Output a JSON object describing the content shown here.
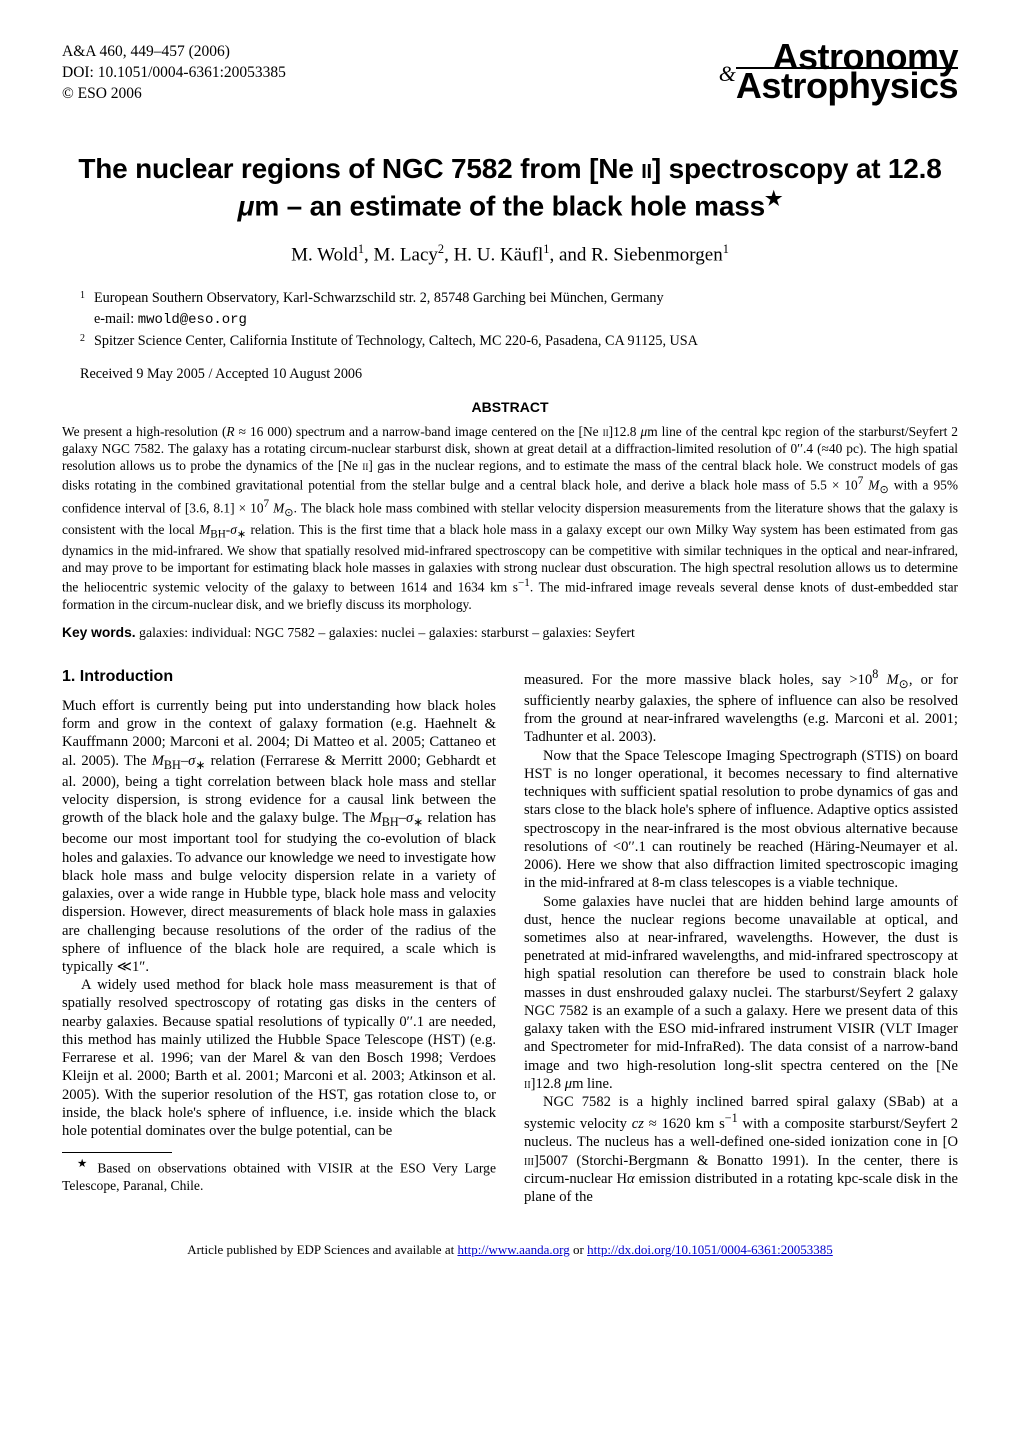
{
  "header": {
    "ref": "A&A 460, 449–457 (2006)",
    "doi": "DOI: 10.1051/0004-6361:20053385",
    "copyright": "© ESO 2006",
    "logo_top": "Astronomy",
    "logo_amp": "&",
    "logo_bot": "Astrophysics"
  },
  "title_html": "The nuclear regions of NGC 7582 from [Ne <span style='font-variant:small-caps'>ii</span>] spectroscopy at 12.8 <i>μ</i>m – an estimate of the black hole mass<sup>&#9733;</sup>",
  "authors_html": "M. Wold<sup>1</sup>, M. Lacy<sup>2</sup>, H. U. Käufl<sup>1</sup>, and R. Siebenmorgen<sup>1</sup>",
  "affiliations": [
    {
      "num": "1",
      "text_html": "European Southern Observatory, Karl-Schwarzschild str. 2, 85748 Garching bei München, Germany<br>e-mail: <span class='email-mono'>mwold@eso.org</span>"
    },
    {
      "num": "2",
      "text_html": "Spitzer Science Center, California Institute of Technology, Caltech, MC 220-6, Pasadena, CA 91125, USA"
    }
  ],
  "dates": "Received 9 May 2005 / Accepted 10 August 2006",
  "abstract_head": "ABSTRACT",
  "abstract_html": "We present a high-resolution (<i>R</i> ≈ 16 000) spectrum and a narrow-band image centered on the [Ne <span style='font-variant:small-caps'>ii</span>]12.8 <i>μ</i>m line of the central kpc region of the starburst/Seyfert 2 galaxy NGC 7582. The galaxy has a rotating circum-nuclear starburst disk, shown at great detail at a diffraction-limited resolution of 0&#8242;&#8242;.4 (≈40 pc). The high spatial resolution allows us to probe the dynamics of the [Ne <span style='font-variant:small-caps'>ii</span>] gas in the nuclear regions, and to estimate the mass of the central black hole. We construct models of gas disks rotating in the combined gravitational potential from the stellar bulge and a central black hole, and derive a black hole mass of 5.5 × 10<sup>7</sup> <i>M</i><sub>⊙</sub> with a 95% confidence interval of [3.6, 8.1] × 10<sup>7</sup> <i>M</i><sub>⊙</sub>. The black hole mass combined with stellar velocity dispersion measurements from the literature shows that the galaxy is consistent with the local <i>M</i><sub>BH</sub>-<i>σ</i><sub>∗</sub> relation. This is the first time that a black hole mass in a galaxy except our own Milky Way system has been estimated from gas dynamics in the mid-infrared. We show that spatially resolved mid-infrared spectroscopy can be competitive with similar techniques in the optical and near-infrared, and may prove to be important for estimating black hole masses in galaxies with strong nuclear dust obscuration. The high spectral resolution allows us to determine the heliocentric systemic velocity of the galaxy to between 1614 and 1634 km s<sup>−1</sup>. The mid-infrared image reveals several dense knots of dust-embedded star formation in the circum-nuclear disk, and we briefly discuss its morphology.",
  "keywords_label": "Key words.",
  "keywords_text": " galaxies: individual: NGC 7582 – galaxies: nuclei – galaxies: starburst – galaxies: Seyfert",
  "section1_head": "1. Introduction",
  "col_left": {
    "p1_html": "Much effort is currently being put into understanding how black holes form and grow in the context of galaxy formation (e.g. Haehnelt & Kauffmann 2000; Marconi et al. 2004; Di Matteo et al. 2005; Cattaneo et al. 2005). The <i>M</i><sub>BH</sub>–<i>σ</i><sub>∗</sub> relation (Ferrarese & Merritt 2000; Gebhardt et al. 2000), being a tight correlation between black hole mass and stellar velocity dispersion, is strong evidence for a causal link between the growth of the black hole and the galaxy bulge. The <i>M</i><sub>BH</sub>–<i>σ</i><sub>∗</sub> relation has become our most important tool for studying the co-evolution of black holes and galaxies. To advance our knowledge we need to investigate how black hole mass and bulge velocity dispersion relate in a variety of galaxies, over a wide range in Hubble type, black hole mass and velocity dispersion. However, direct measurements of black hole mass in galaxies are challenging because resolutions of the order of the radius of the sphere of influence of the black hole are required, a scale which is typically ≪1″.",
    "p2_html": "A widely used method for black hole mass measurement is that of spatially resolved spectroscopy of rotating gas disks in the centers of nearby galaxies. Because spatial resolutions of typically 0&#8242;&#8242;.1 are needed, this method has mainly utilized the Hubble Space Telescope (HST) (e.g. Ferrarese et al. 1996; van der Marel & van den Bosch 1998; Verdoes Kleijn et al. 2000; Barth et al. 2001; Marconi et al. 2003; Atkinson et al. 2005). With the superior resolution of the HST, gas rotation close to, or inside, the black hole's sphere of influence, i.e. inside which the black hole potential dominates over the bulge potential, can be",
    "footnote_html": "<sup>&#9733;</sup> Based on observations obtained with VISIR at the ESO Very Large Telescope, Paranal, Chile."
  },
  "col_right": {
    "p1_html": "measured. For the more massive black holes, say &gt;10<sup>8</sup> <i>M</i><sub>⊙</sub>, or for sufficiently nearby galaxies, the sphere of influence can also be resolved from the ground at near-infrared wavelengths (e.g. Marconi et al. 2001; Tadhunter et al. 2003).",
    "p2_html": "Now that the Space Telescope Imaging Spectrograph (STIS) on board HST is no longer operational, it becomes necessary to find alternative techniques with sufficient spatial resolution to probe dynamics of gas and stars close to the black hole's sphere of influence. Adaptive optics assisted spectroscopy in the near-infrared is the most obvious alternative because resolutions of &lt;0&#8242;&#8242;.1 can routinely be reached (Häring-Neumayer et al. 2006). Here we show that also diffraction limited spectroscopic imaging in the mid-infrared at 8-m class telescopes is a viable technique.",
    "p3_html": "Some galaxies have nuclei that are hidden behind large amounts of dust, hence the nuclear regions become unavailable at optical, and sometimes also at near-infrared, wavelengths. However, the dust is penetrated at mid-infrared wavelengths, and mid-infrared spectroscopy at high spatial resolution can therefore be used to constrain black hole masses in dust enshrouded galaxy nuclei. The starburst/Seyfert 2 galaxy NGC 7582 is an example of a such a galaxy. Here we present data of this galaxy taken with the ESO mid-infrared instrument VISIR (VLT Imager and Spectrometer for mid-InfraRed). The data consist of a narrow-band image and two high-resolution long-slit spectra centered on the [Ne <span style='font-variant:small-caps'>ii</span>]12.8 <i>μ</i>m line.",
    "p4_html": "NGC 7582 is a highly inclined barred spiral galaxy (SBab) at a systemic velocity <i>cz</i> ≈ 1620 km s<sup>−1</sup> with a composite starburst/Seyfert 2 nucleus. The nucleus has a well-defined one-sided ionization cone in [O <span style='font-variant:small-caps'>iii</span>]5007 (Storchi-Bergmann & Bonatto 1991). In the center, there is circum-nuclear H<i>α</i> emission distributed in a rotating kpc-scale disk in the plane of the"
  },
  "footer": {
    "text_pre": "Article published by EDP Sciences and available at ",
    "link1_text": "http://www.aanda.org",
    "link1_href": "http://www.aanda.org",
    "text_mid": " or ",
    "link2_text": "http://dx.doi.org/10.1051/0004-6361:20053385",
    "link2_href": "http://dx.doi.org/10.1051/0004-6361:20053385"
  }
}
